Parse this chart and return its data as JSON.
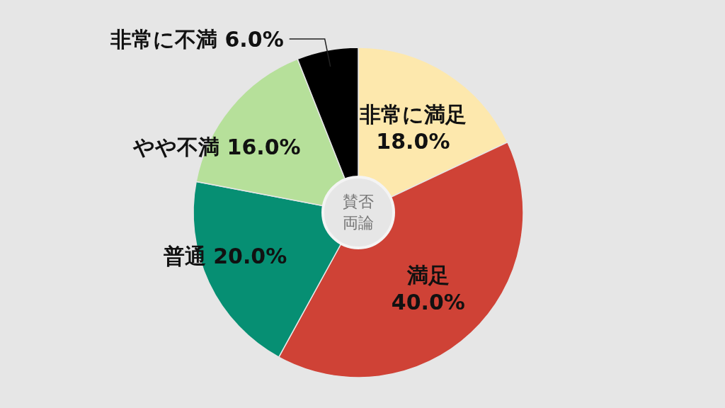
{
  "chart_data": {
    "type": "donut",
    "title": "賛否両論",
    "categories": [
      "非常に満足",
      "満足",
      "普通",
      "やや不満",
      "非常に不満"
    ],
    "values": [
      18,
      40,
      20,
      16,
      6
    ],
    "value_labels": [
      "18.0%",
      "40.0%",
      "20.0%",
      "16.0%",
      "6.0%"
    ],
    "colors": [
      "#fde8ad",
      "#cf4236",
      "#068f73",
      "#b6e09a",
      "#000000"
    ]
  }
}
